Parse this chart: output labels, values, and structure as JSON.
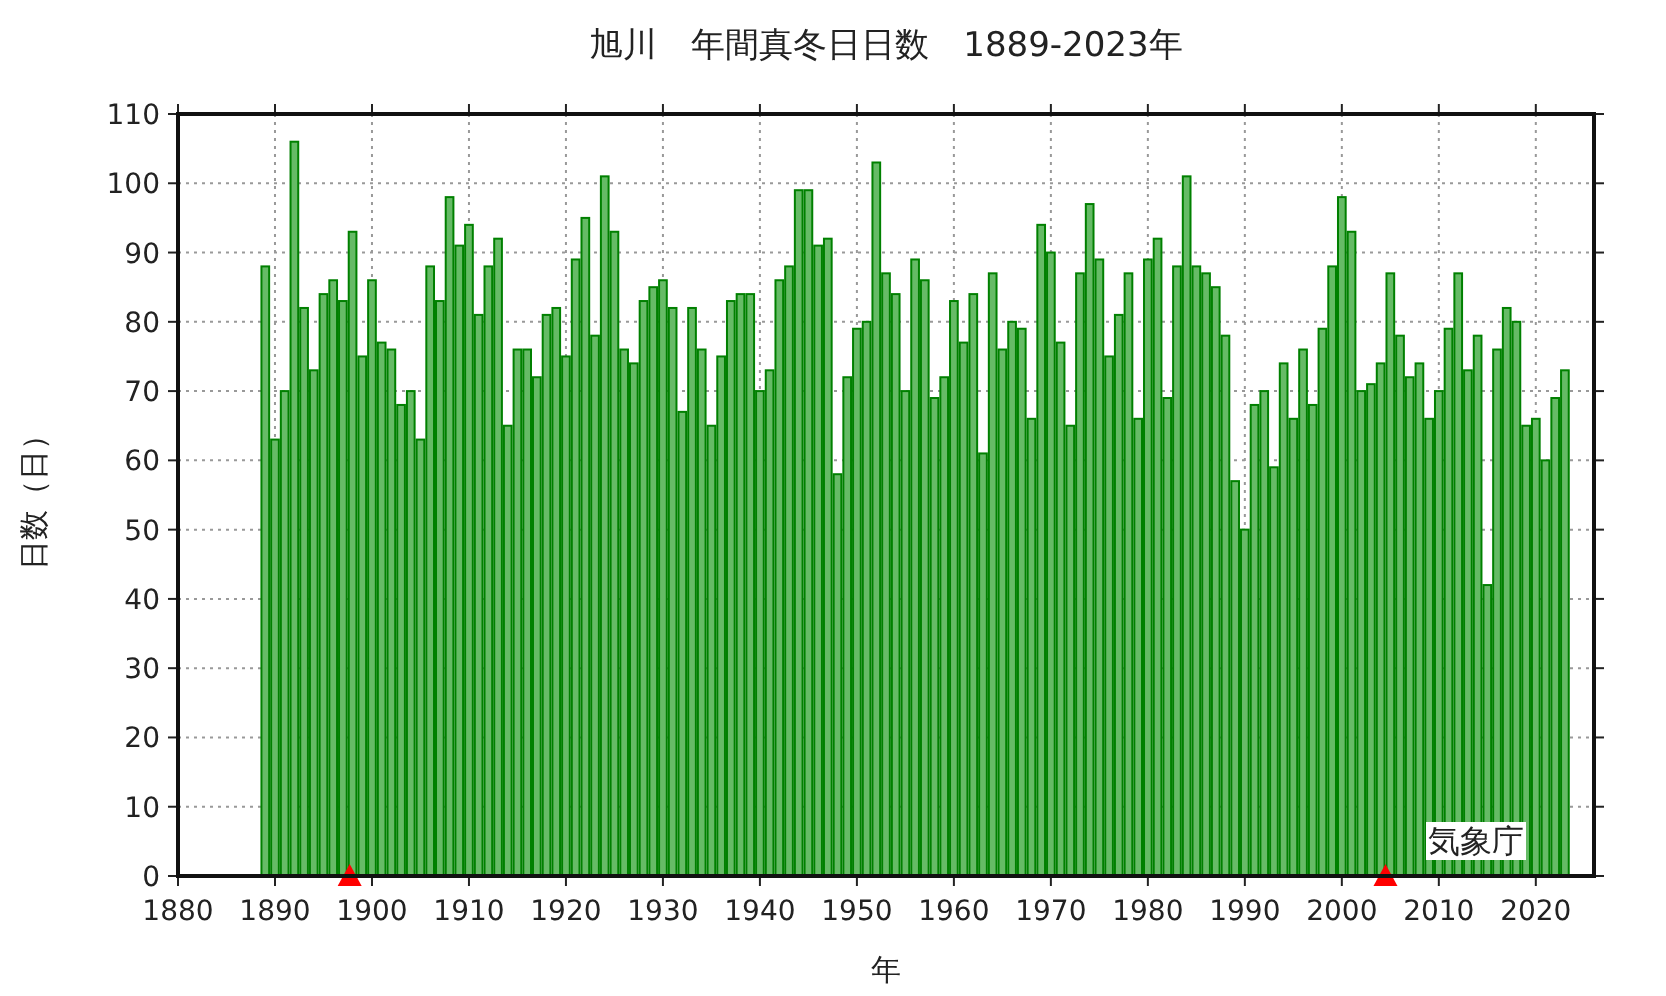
{
  "chart_data": {
    "type": "bar",
    "title": "旭川　年間真冬日日数　1889-2023年",
    "xlabel": "年",
    "ylabel": "日数（日）",
    "annotations": [
      "気象庁"
    ],
    "xlim": [
      1880,
      2026
    ],
    "xticks": [
      1880,
      1890,
      1900,
      1910,
      1920,
      1930,
      1940,
      1950,
      1960,
      1970,
      1980,
      1990,
      2000,
      2010,
      2020
    ],
    "ylim": [
      0,
      110
    ],
    "yticks": [
      0,
      10,
      20,
      30,
      40,
      50,
      60,
      70,
      80,
      90,
      100,
      110
    ],
    "grid": true,
    "series": [
      {
        "color": "#66bb66",
        "x": [
          1889,
          1890,
          1891,
          1892,
          1893,
          1894,
          1895,
          1896,
          1897,
          1898,
          1899,
          1900,
          1901,
          1902,
          1903,
          1904,
          1905,
          1906,
          1907,
          1908,
          1909,
          1910,
          1911,
          1912,
          1913,
          1914,
          1915,
          1916,
          1917,
          1918,
          1919,
          1920,
          1921,
          1922,
          1923,
          1924,
          1925,
          1926,
          1927,
          1928,
          1929,
          1930,
          1931,
          1932,
          1933,
          1934,
          1935,
          1936,
          1937,
          1938,
          1939,
          1940,
          1941,
          1942,
          1943,
          1944,
          1945,
          1946,
          1947,
          1948,
          1949,
          1950,
          1951,
          1952,
          1953,
          1954,
          1955,
          1956,
          1957,
          1958,
          1959,
          1960,
          1961,
          1962,
          1963,
          1964,
          1965,
          1966,
          1967,
          1968,
          1969,
          1970,
          1971,
          1972,
          1973,
          1974,
          1975,
          1976,
          1977,
          1978,
          1979,
          1980,
          1981,
          1982,
          1983,
          1984,
          1985,
          1986,
          1987,
          1988,
          1989,
          1990,
          1991,
          1992,
          1993,
          1994,
          1995,
          1996,
          1997,
          1998,
          1999,
          2000,
          2001,
          2002,
          2003,
          2004,
          2005,
          2006,
          2007,
          2008,
          2009,
          2010,
          2011,
          2012,
          2013,
          2014,
          2015,
          2016,
          2017,
          2018,
          2019,
          2020,
          2021,
          2022,
          2023
        ],
        "values": [
          88,
          63,
          70,
          106,
          82,
          73,
          84,
          86,
          83,
          93,
          75,
          86,
          77,
          76,
          68,
          70,
          63,
          88,
          83,
          98,
          91,
          94,
          81,
          88,
          92,
          65,
          76,
          76,
          72,
          81,
          82,
          75,
          89,
          95,
          78,
          101,
          93,
          76,
          74,
          83,
          85,
          86,
          82,
          67,
          82,
          76,
          65,
          75,
          83,
          84,
          84,
          70,
          73,
          86,
          88,
          99,
          99,
          91,
          92,
          58,
          72,
          79,
          80,
          103,
          87,
          84,
          70,
          89,
          86,
          69,
          72,
          83,
          77,
          84,
          61,
          87,
          76,
          80,
          79,
          66,
          94,
          90,
          77,
          65,
          87,
          97,
          89,
          75,
          81,
          87,
          66,
          89,
          92,
          69,
          88,
          101,
          88,
          87,
          85,
          78,
          57,
          50,
          68,
          70,
          59,
          74,
          66,
          76,
          68,
          79,
          88,
          98,
          93,
          70,
          71,
          74,
          87,
          78,
          72,
          74,
          66,
          70,
          79,
          87,
          73,
          78,
          42,
          76,
          82,
          80,
          65,
          66,
          60,
          69,
          73
        ]
      },
      {
        "type": "scatter",
        "color": "#ff0000",
        "marker": "triangle",
        "x": [
          1897.7,
          2004.5
        ],
        "values": [
          0,
          0
        ]
      }
    ]
  }
}
